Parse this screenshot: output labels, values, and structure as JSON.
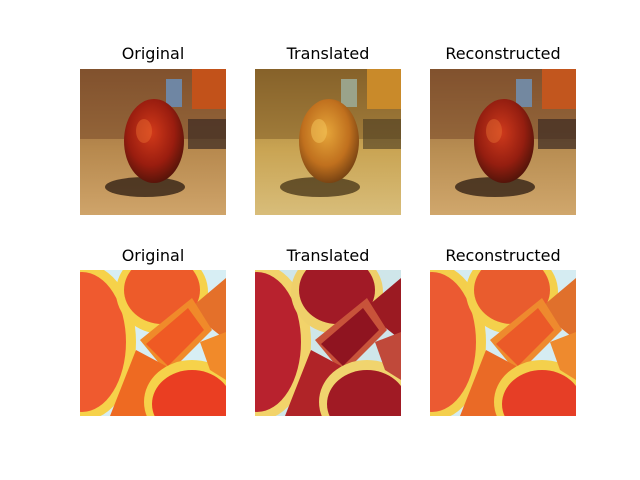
{
  "figure": {
    "rows": [
      {
        "name": "apple",
        "panels": [
          {
            "title": "Original",
            "image": "apple-original"
          },
          {
            "title": "Translated",
            "image": "apple-translated"
          },
          {
            "title": "Reconstructed",
            "image": "apple-reconstructed"
          }
        ]
      },
      {
        "name": "orange",
        "panels": [
          {
            "title": "Original",
            "image": "orange-original"
          },
          {
            "title": "Translated",
            "image": "orange-translated"
          },
          {
            "title": "Reconstructed",
            "image": "orange-reconstructed"
          }
        ]
      }
    ]
  }
}
